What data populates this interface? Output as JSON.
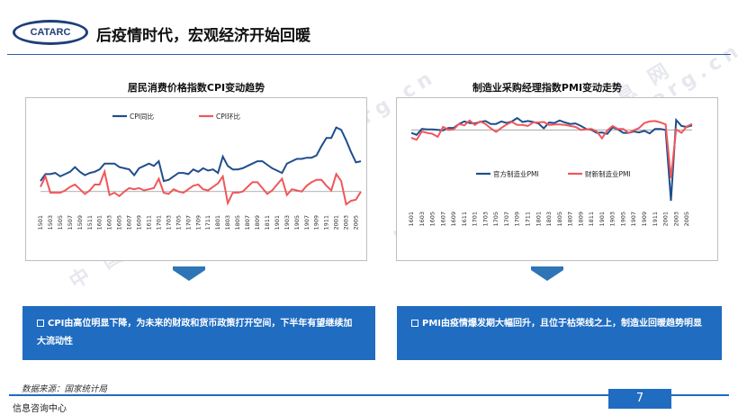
{
  "logo": {
    "text": "CATARC"
  },
  "header": {
    "title": "后疫情时代，宏观经济开始回暖"
  },
  "watermark": {
    "text_cn": "中 国 汽 车 工 业 信 息 网",
    "text_url": "www.autoinfo.org.cn"
  },
  "charts": {
    "left_title": "居民消费价格指数CPI变动趋势",
    "right_title": "制造业采购经理指数PMI变动走势"
  },
  "notes": {
    "left": "CPI由高位明显下降，为未来的财政和货币政策打开空间，下半年有望继续加大流动性",
    "right": "PMI由疫情爆发期大幅回升，且位于枯荣线之上，制造业回暖趋势明显"
  },
  "source": "数据来源：国家统计局",
  "page_number": "7",
  "footer": "信息咨询中心",
  "colors": {
    "series_blue": "#1f4e8c",
    "series_red": "#f0575a",
    "accent": "#1f6cc1"
  },
  "chart_data": [
    {
      "type": "line",
      "x": [
        "1501",
        "1502",
        "1503",
        "1504",
        "1505",
        "1506",
        "1507",
        "1508",
        "1509",
        "1510",
        "1511",
        "1512",
        "1601",
        "1602",
        "1603",
        "1604",
        "1605",
        "1606",
        "1607",
        "1608",
        "1609",
        "1610",
        "1611",
        "1612",
        "1701",
        "1702",
        "1703",
        "1704",
        "1705",
        "1706",
        "1707",
        "1708",
        "1709",
        "1710",
        "1711",
        "1712",
        "1801",
        "1802",
        "1803",
        "1804",
        "1805",
        "1806",
        "1807",
        "1808",
        "1809",
        "1810",
        "1811",
        "1812",
        "1901",
        "1902",
        "1903",
        "1904",
        "1905",
        "1906",
        "1907",
        "1908",
        "1909",
        "1910",
        "1911",
        "1912",
        "2001",
        "2002",
        "2003",
        "2004",
        "2005",
        "2006"
      ],
      "x_tick_labels": [
        "1501",
        "1503",
        "1505",
        "1507",
        "1509",
        "1511",
        "1601",
        "1603",
        "1605",
        "1607",
        "1609",
        "1611",
        "1701",
        "1703",
        "1705",
        "1707",
        "1709",
        "1711",
        "1801",
        "1803",
        "1805",
        "1807",
        "1809",
        "1811",
        "1901",
        "1903",
        "1905",
        "1907",
        "1909",
        "1911",
        "2001",
        "2003",
        "2005"
      ],
      "series": [
        {
          "name": "CPI同比",
          "color": "#1f4e8c",
          "values": [
            0.8,
            1.4,
            1.4,
            1.5,
            1.2,
            1.4,
            1.6,
            2.0,
            1.6,
            1.3,
            1.5,
            1.6,
            1.8,
            2.3,
            2.3,
            2.3,
            2.0,
            1.9,
            1.8,
            1.3,
            1.9,
            2.1,
            2.3,
            2.1,
            2.5,
            0.8,
            0.9,
            1.2,
            1.5,
            1.5,
            1.4,
            1.8,
            1.6,
            1.9,
            1.7,
            1.8,
            1.5,
            2.9,
            2.1,
            1.8,
            1.8,
            1.9,
            2.1,
            2.3,
            2.5,
            2.5,
            2.2,
            1.9,
            1.7,
            1.5,
            2.3,
            2.5,
            2.7,
            2.7,
            2.8,
            2.8,
            3.0,
            3.8,
            4.5,
            4.5,
            5.4,
            5.2,
            4.3,
            3.3,
            2.4,
            2.5
          ]
        },
        {
          "name": "CPI环比",
          "color": "#f0575a",
          "values": [
            0.3,
            1.2,
            -0.2,
            -0.2,
            -0.2,
            0.0,
            0.3,
            0.5,
            0.1,
            -0.3,
            0.0,
            0.5,
            0.5,
            1.6,
            -0.4,
            -0.2,
            -0.5,
            -0.1,
            0.2,
            0.1,
            0.2,
            0.0,
            0.1,
            0.2,
            1.0,
            -0.2,
            -0.3,
            0.1,
            -0.1,
            -0.2,
            0.1,
            0.4,
            0.5,
            0.1,
            0.0,
            0.3,
            0.6,
            1.2,
            -1.1,
            -0.2,
            -0.2,
            -0.1,
            0.3,
            0.7,
            0.7,
            0.2,
            -0.3,
            0.0,
            0.5,
            1.0,
            -0.4,
            0.1,
            0.0,
            -0.1,
            0.4,
            0.7,
            0.9,
            0.9,
            0.4,
            0.0,
            1.4,
            0.8,
            -1.2,
            -0.9,
            -0.8,
            -0.1
          ]
        }
      ]
    },
    {
      "type": "line",
      "x": [
        "1601",
        "1602",
        "1603",
        "1604",
        "1605",
        "1606",
        "1607",
        "1608",
        "1609",
        "1610",
        "1611",
        "1612",
        "1701",
        "1702",
        "1703",
        "1704",
        "1705",
        "1706",
        "1707",
        "1708",
        "1709",
        "1710",
        "1711",
        "1712",
        "1801",
        "1802",
        "1803",
        "1804",
        "1805",
        "1806",
        "1807",
        "1808",
        "1809",
        "1810",
        "1811",
        "1812",
        "1901",
        "1902",
        "1903",
        "1904",
        "1905",
        "1906",
        "1907",
        "1908",
        "1909",
        "1910",
        "1911",
        "1912",
        "2001",
        "2002",
        "2003",
        "2004",
        "2005",
        "2006"
      ],
      "x_tick_labels": [
        "1601",
        "1603",
        "1605",
        "1607",
        "1609",
        "1611",
        "1701",
        "1703",
        "1705",
        "1707",
        "1709",
        "1711",
        "1801",
        "1803",
        "1805",
        "1807",
        "1809",
        "1811",
        "1901",
        "1903",
        "1905",
        "1907",
        "1909",
        "1911",
        "2001",
        "2003",
        "2005"
      ],
      "series": [
        {
          "name": "官方制造业PMI",
          "color": "#1f4e8c",
          "values": [
            49.4,
            49.0,
            50.2,
            50.1,
            50.1,
            50.0,
            49.9,
            50.4,
            50.4,
            51.2,
            51.7,
            51.4,
            51.3,
            51.6,
            51.8,
            51.2,
            51.2,
            51.7,
            51.4,
            51.7,
            52.4,
            51.6,
            51.8,
            51.6,
            51.3,
            50.3,
            51.5,
            51.4,
            51.9,
            51.5,
            51.2,
            51.3,
            50.8,
            50.2,
            50.0,
            49.4,
            49.5,
            49.2,
            50.5,
            50.1,
            49.4,
            49.4,
            49.7,
            49.5,
            49.8,
            49.3,
            50.2,
            50.2,
            50.0,
            35.7,
            52.0,
            50.8,
            50.6,
            50.9
          ]
        },
        {
          "name": "财新制造业PMI",
          "color": "#f0575a",
          "values": [
            48.4,
            48.0,
            49.7,
            49.4,
            49.2,
            48.6,
            50.6,
            50.0,
            50.1,
            51.2,
            50.9,
            51.9,
            51.0,
            51.7,
            51.2,
            50.3,
            49.6,
            50.4,
            51.1,
            51.6,
            51.0,
            51.0,
            50.8,
            51.5,
            51.5,
            51.6,
            51.0,
            51.1,
            51.1,
            51.0,
            50.8,
            50.6,
            50.0,
            50.1,
            50.2,
            49.7,
            48.3,
            49.9,
            50.8,
            50.2,
            50.2,
            49.4,
            49.9,
            50.4,
            51.4,
            51.7,
            51.8,
            51.5,
            51.1,
            40.3,
            50.1,
            49.4,
            50.7,
            51.2
          ]
        }
      ]
    }
  ]
}
